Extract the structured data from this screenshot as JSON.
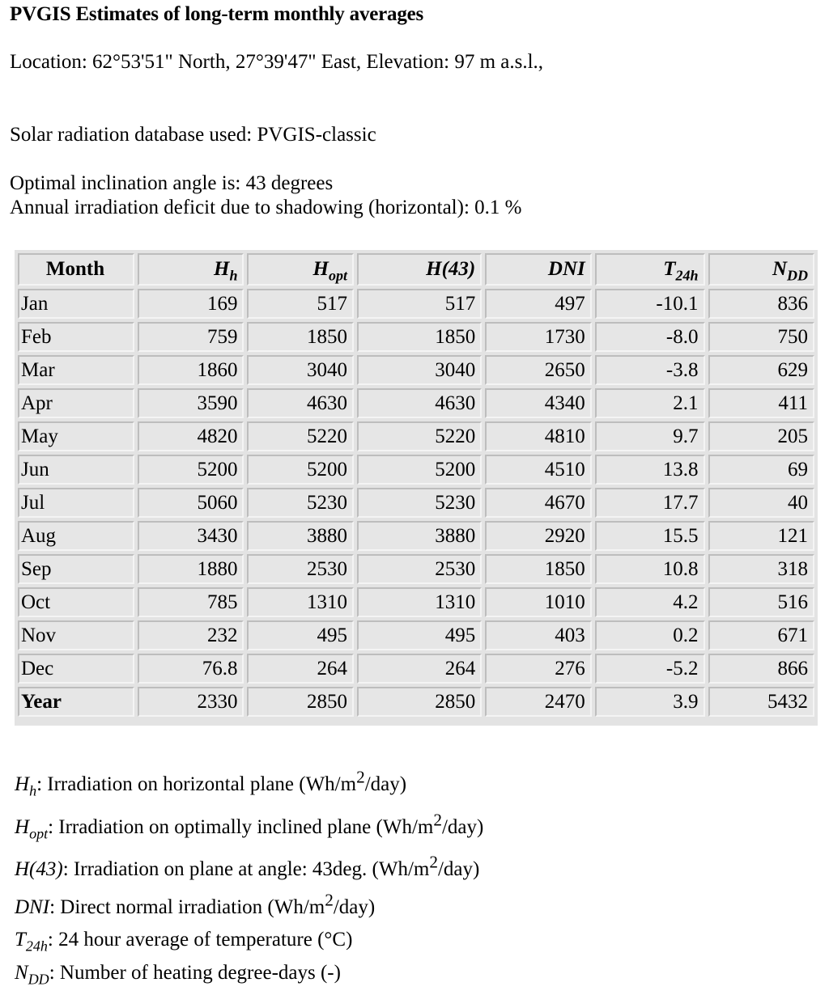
{
  "title": "PVGIS Estimates of long-term monthly averages",
  "location": "Location: 62°53'51\" North, 27°39'47\" East, Elevation: 97 m a.s.l.,",
  "database": "Solar radiation database used: PVGIS-classic",
  "optimal_angle": "Optimal inclination angle is: 43 degrees",
  "shadow_deficit": "Annual irradiation deficit due to shadowing (horizontal): 0.1 %",
  "table": {
    "headers": {
      "month": "Month",
      "hh": {
        "base": "H",
        "sub": "h"
      },
      "hopt": {
        "base": "H",
        "sub": "opt"
      },
      "h43": "H(43)",
      "dni": "DNI",
      "t24": {
        "base": "T",
        "sub": "24h"
      },
      "ndd": {
        "base": "N",
        "sub": "DD"
      }
    },
    "rows": [
      {
        "month": "Jan",
        "hh": "169",
        "hopt": "517",
        "h43": "517",
        "dni": "497",
        "t24": "-10.1",
        "ndd": "836"
      },
      {
        "month": "Feb",
        "hh": "759",
        "hopt": "1850",
        "h43": "1850",
        "dni": "1730",
        "t24": "-8.0",
        "ndd": "750"
      },
      {
        "month": "Mar",
        "hh": "1860",
        "hopt": "3040",
        "h43": "3040",
        "dni": "2650",
        "t24": "-3.8",
        "ndd": "629"
      },
      {
        "month": "Apr",
        "hh": "3590",
        "hopt": "4630",
        "h43": "4630",
        "dni": "4340",
        "t24": "2.1",
        "ndd": "411"
      },
      {
        "month": "May",
        "hh": "4820",
        "hopt": "5220",
        "h43": "5220",
        "dni": "4810",
        "t24": "9.7",
        "ndd": "205"
      },
      {
        "month": "Jun",
        "hh": "5200",
        "hopt": "5200",
        "h43": "5200",
        "dni": "4510",
        "t24": "13.8",
        "ndd": "69"
      },
      {
        "month": "Jul",
        "hh": "5060",
        "hopt": "5230",
        "h43": "5230",
        "dni": "4670",
        "t24": "17.7",
        "ndd": "40"
      },
      {
        "month": "Aug",
        "hh": "3430",
        "hopt": "3880",
        "h43": "3880",
        "dni": "2920",
        "t24": "15.5",
        "ndd": "121"
      },
      {
        "month": "Sep",
        "hh": "1880",
        "hopt": "2530",
        "h43": "2530",
        "dni": "1850",
        "t24": "10.8",
        "ndd": "318"
      },
      {
        "month": "Oct",
        "hh": "785",
        "hopt": "1310",
        "h43": "1310",
        "dni": "1010",
        "t24": "4.2",
        "ndd": "516"
      },
      {
        "month": "Nov",
        "hh": "232",
        "hopt": "495",
        "h43": "495",
        "dni": "403",
        "t24": "0.2",
        "ndd": "671"
      },
      {
        "month": "Dec",
        "hh": "76.8",
        "hopt": "264",
        "h43": "264",
        "dni": "276",
        "t24": "-5.2",
        "ndd": "866"
      },
      {
        "month": "Year",
        "hh": "2330",
        "hopt": "2850",
        "h43": "2850",
        "dni": "2470",
        "t24": "3.9",
        "ndd": "5432"
      }
    ]
  },
  "legend": [
    {
      "sym": "H",
      "sub": "h",
      "text": ": Irradiation on horizontal plane (Wh/m",
      "sup": "2",
      "tail": "/day)"
    },
    {
      "sym": "H",
      "sub": "opt",
      "text": ": Irradiation on optimally inclined plane (Wh/m",
      "sup": "2",
      "tail": "/day)"
    },
    {
      "sym": "H(43)",
      "sub": "",
      "text": ": Irradiation on plane at angle: 43deg. (Wh/m",
      "sup": "2",
      "tail": "/day)"
    },
    {
      "sym": "DNI",
      "sub": "",
      "text": ": Direct normal irradiation (Wh/m",
      "sup": "2",
      "tail": "/day)"
    },
    {
      "sym": "T",
      "sub": "24h",
      "text": ": 24 hour average of temperature (°C)",
      "sup": "",
      "tail": ""
    },
    {
      "sym": "N",
      "sub": "DD",
      "text": ": Number of heating degree-days (-)",
      "sup": "",
      "tail": ""
    }
  ]
}
